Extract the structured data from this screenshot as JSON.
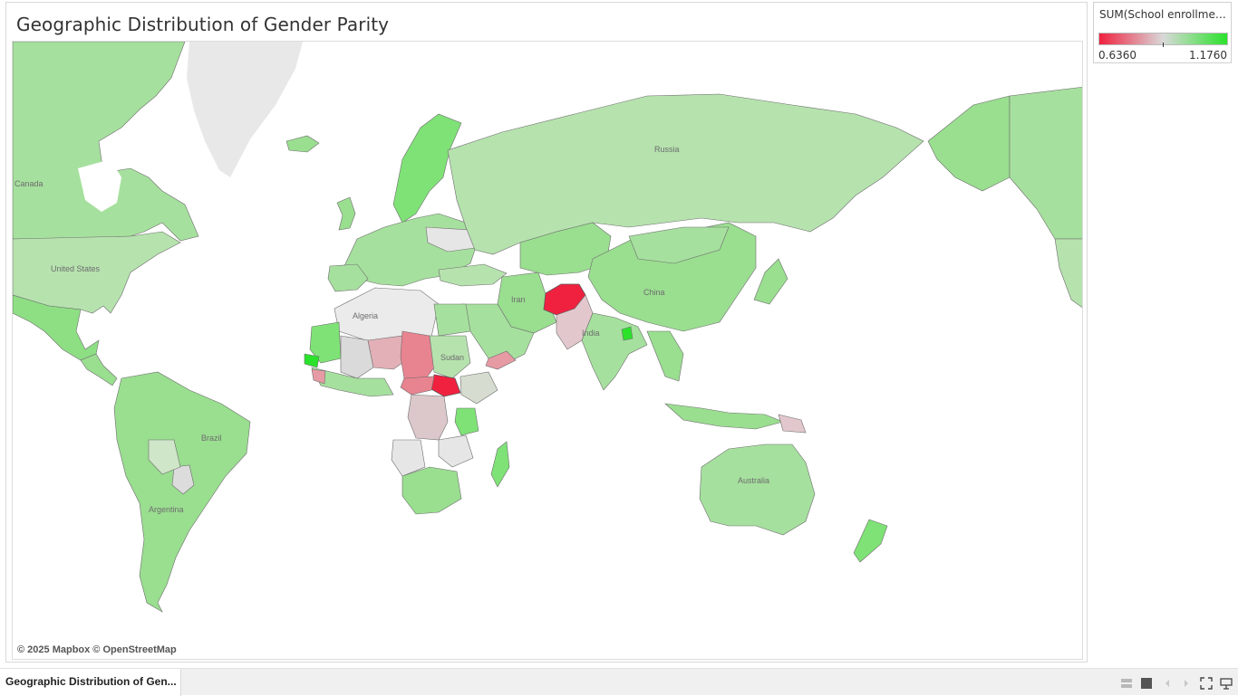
{
  "sheet": {
    "title": "Geographic Distribution of Gender Parity",
    "tab_label": "Geographic Distribution of Gen..."
  },
  "map": {
    "attribution": "© 2025 Mapbox © OpenStreetMap",
    "labels": [
      "Canada",
      "United States",
      "Russia",
      "China",
      "India",
      "Algeria",
      "Brazil",
      "Australia",
      "Iran",
      "Sudan",
      "Argentina"
    ]
  },
  "legend": {
    "title": "SUM(School enrollment, ...",
    "min_label": "0.6360",
    "max_label": "1.1760",
    "color_low": "#f0213f",
    "color_mid": "#d9d9d9",
    "color_high": "#2be22b"
  },
  "toolbar": {
    "icons": [
      "grid-view-icon",
      "square-view-icon",
      "previous-icon",
      "next-icon",
      "fullscreen-icon",
      "present-icon"
    ]
  }
}
